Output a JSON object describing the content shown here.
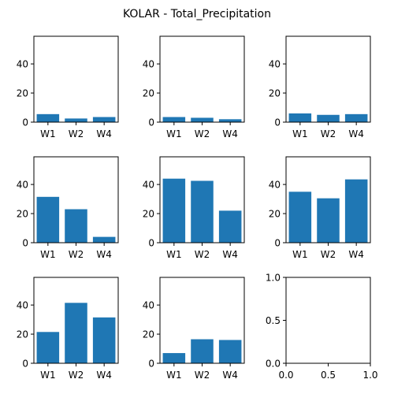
{
  "title": "KOLAR - Total_Precipitation",
  "colors": {
    "bar": "#1f77b4"
  },
  "chart_data": [
    {
      "type": "bar",
      "categories": [
        "W1",
        "W2",
        "W4"
      ],
      "values": [
        5.5,
        2.5,
        3.5
      ],
      "ylim": [
        0,
        59
      ],
      "yticks": [
        "0",
        "20",
        "40"
      ]
    },
    {
      "type": "bar",
      "categories": [
        "W1",
        "W2",
        "W4"
      ],
      "values": [
        3.5,
        3.0,
        2.0
      ],
      "ylim": [
        0,
        59
      ],
      "yticks": [
        "0",
        "20",
        "40"
      ]
    },
    {
      "type": "bar",
      "categories": [
        "W1",
        "W2",
        "W4"
      ],
      "values": [
        6.0,
        5.0,
        5.5
      ],
      "ylim": [
        0,
        59
      ],
      "yticks": [
        "0",
        "20",
        "40"
      ]
    },
    {
      "type": "bar",
      "categories": [
        "W1",
        "W2",
        "W4"
      ],
      "values": [
        31.5,
        23.0,
        4.0
      ],
      "ylim": [
        0,
        59
      ],
      "yticks": [
        "0",
        "20",
        "40"
      ]
    },
    {
      "type": "bar",
      "categories": [
        "W1",
        "W2",
        "W4"
      ],
      "values": [
        44.0,
        42.5,
        22.0
      ],
      "ylim": [
        0,
        59
      ],
      "yticks": [
        "0",
        "20",
        "40"
      ]
    },
    {
      "type": "bar",
      "categories": [
        "W1",
        "W2",
        "W4"
      ],
      "values": [
        35.0,
        30.5,
        43.5
      ],
      "ylim": [
        0,
        59
      ],
      "yticks": [
        "0",
        "20",
        "40"
      ]
    },
    {
      "type": "bar",
      "categories": [
        "W1",
        "W2",
        "W4"
      ],
      "values": [
        21.5,
        41.5,
        31.5
      ],
      "ylim": [
        0,
        59
      ],
      "yticks": [
        "0",
        "20",
        "40"
      ]
    },
    {
      "type": "bar",
      "categories": [
        "W1",
        "W2",
        "W4"
      ],
      "values": [
        7.0,
        16.5,
        16.0
      ],
      "ylim": [
        0,
        59
      ],
      "yticks": [
        "0",
        "20",
        "40"
      ]
    },
    {
      "type": "empty",
      "xlim": [
        0,
        1
      ],
      "ylim": [
        0,
        1
      ],
      "xticks": [
        "0.0",
        "0.5",
        "1.0"
      ],
      "yticks": [
        "0.0",
        "0.5",
        "1.0"
      ]
    }
  ]
}
